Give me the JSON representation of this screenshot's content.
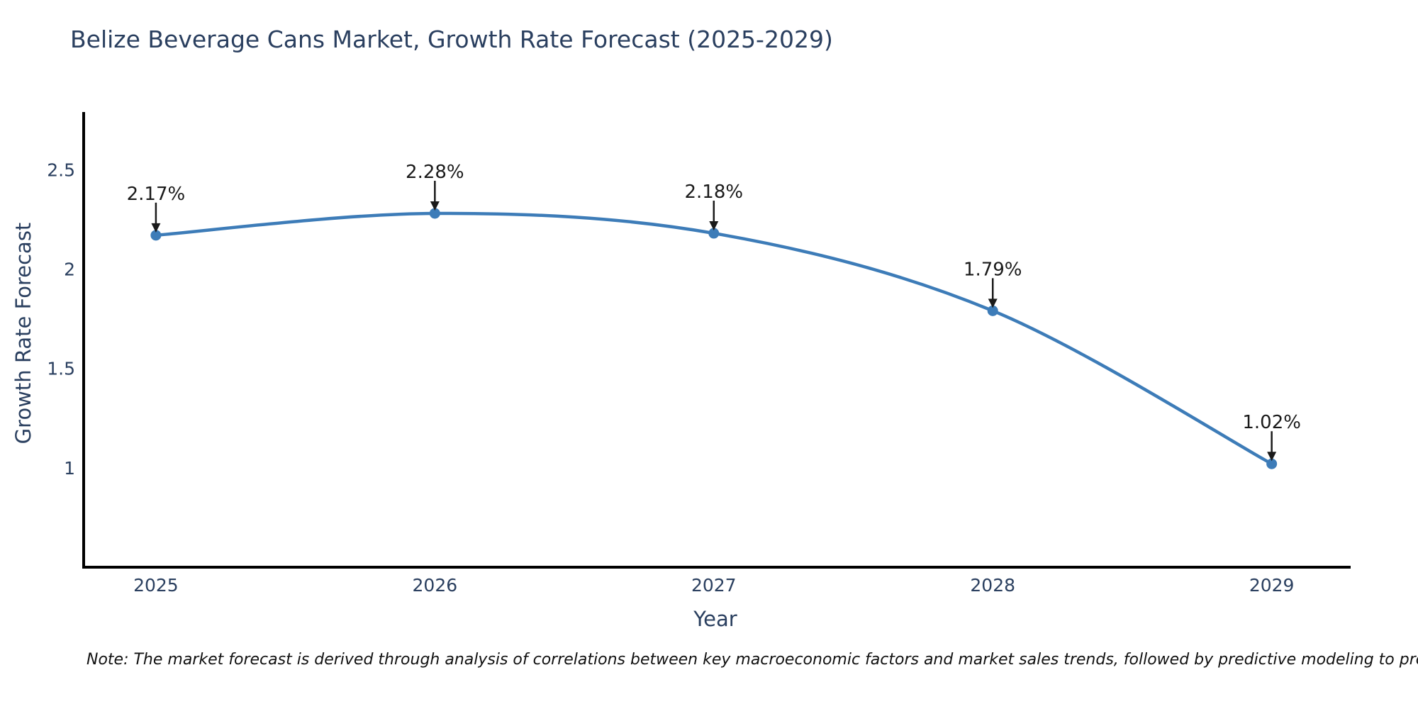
{
  "chart": {
    "title": "Belize Beverage Cans Market, Growth Rate Forecast (2025-2029)",
    "xlabel": "Year",
    "ylabel": "Growth Rate Forecast",
    "note": "Note: The market forecast is derived through analysis of correlations between key macroeconomic factors and market sales trends, followed by predictive modeling to project future sales"
  },
  "chart_data": {
    "type": "line",
    "title": "Belize Beverage Cans Market, Growth Rate Forecast (2025-2029)",
    "xlabel": "Year",
    "ylabel": "Growth Rate Forecast",
    "x": [
      2025,
      2026,
      2027,
      2028,
      2029
    ],
    "values": [
      2.17,
      2.28,
      2.18,
      1.79,
      1.02
    ],
    "point_labels": [
      "2.17%",
      "2.28%",
      "2.18%",
      "1.79%",
      "1.02%"
    ],
    "x_tick_labels": [
      "2025",
      "2026",
      "2027",
      "2028",
      "2029"
    ],
    "y_ticks": [
      1,
      1.5,
      2,
      2.5
    ],
    "y_tick_labels": [
      "1",
      "1.5",
      "2",
      "2.5"
    ],
    "xlim": [
      2024.741,
      2029.283
    ],
    "ylim": [
      0.5,
      2.79
    ],
    "line_shape": "spline",
    "grid": false,
    "legend": "none",
    "colors": {
      "line": "#3d7cb8",
      "marker": "#3d7cb8",
      "axis": "#000000",
      "tick_text": "#2a3f5f",
      "annotation": "#1a1a1a",
      "title_text": "#2a3f5f",
      "note_text": "#111111",
      "background": "#ffffff"
    }
  }
}
